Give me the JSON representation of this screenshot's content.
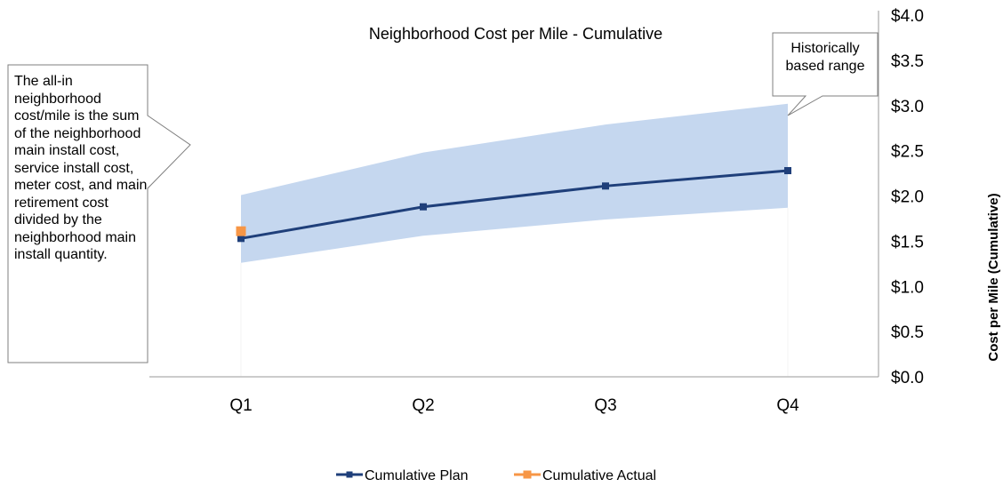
{
  "chart_data": {
    "type": "line",
    "title": "Neighborhood Cost per Mile - Cumulative",
    "ylabel": "Cost per Mile (Cumulative)",
    "categories": [
      "Q1",
      "Q2",
      "Q3",
      "Q4"
    ],
    "y_ticks": [
      "$0.0",
      "$0.5",
      "$1.0",
      "$1.5",
      "$2.0",
      "$2.5",
      "$3.0",
      "$3.5",
      "$4.0"
    ],
    "ylim": [
      0,
      4.0
    ],
    "y_axis_side": "right",
    "series": [
      {
        "name": "Cumulative Plan",
        "values": [
          1.53,
          1.88,
          2.11,
          2.28
        ],
        "color": "#1f3f7a",
        "marker": "square"
      },
      {
        "name": "Cumulative Actual",
        "values": [
          1.61,
          null,
          null,
          null
        ],
        "color": "#f79646",
        "marker": "square"
      }
    ],
    "range_band": {
      "label": "Historically based range",
      "lower": [
        1.26,
        1.56,
        1.74,
        1.87
      ],
      "upper": [
        2.01,
        2.48,
        2.79,
        3.02
      ],
      "color": "#c5d7ef"
    },
    "legend_position": "bottom",
    "grid": false
  },
  "annotations": {
    "left_callout": "The all-in neighborhood cost/mile is the sum of the neighborhood main install cost, service install cost, meter cost, and main retirement cost divided by the neighborhood main install quantity.",
    "range_callout": "Historically based range"
  }
}
